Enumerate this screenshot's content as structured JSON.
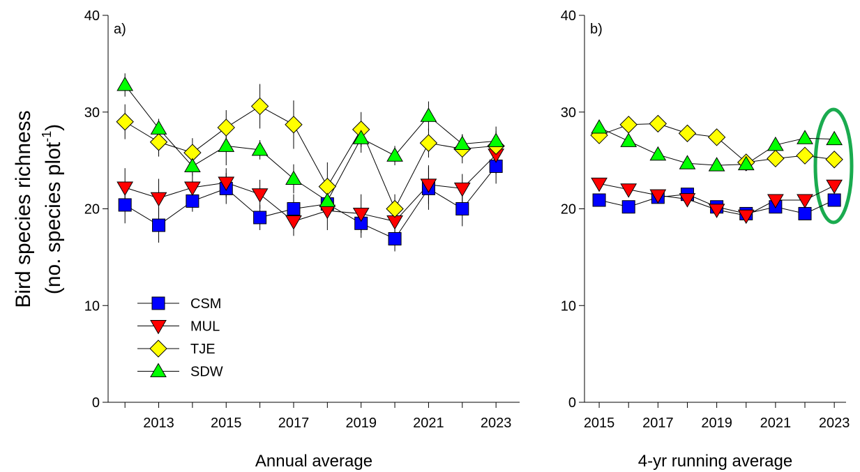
{
  "chart_data": [
    {
      "type": "line",
      "panel_label": "a)",
      "xlabel": "Annual average",
      "ylabel": "Bird species richness",
      "ylabel_unit": "(no. species plot",
      "ylabel_sup": "-1",
      "ylabel_end": ")",
      "x": [
        2012,
        2013,
        2014,
        2015,
        2016,
        2017,
        2018,
        2019,
        2020,
        2021,
        2022,
        2023
      ],
      "xlim": [
        2011.5,
        2023.7
      ],
      "xticks": [
        2013,
        2015,
        2017,
        2019,
        2021,
        2023
      ],
      "ylim": [
        0,
        40
      ],
      "yticks": [
        0,
        10,
        20,
        30,
        40
      ],
      "legend": "lower left",
      "series": [
        {
          "name": "CSM",
          "color": "#0000ff",
          "marker": "square",
          "values": [
            20.4,
            18.3,
            20.8,
            22.1,
            19.1,
            20.0,
            20.5,
            18.5,
            16.9,
            22.1,
            20.0,
            24.4
          ],
          "errors": [
            1.9,
            1.8,
            1.1,
            1.6,
            1.3,
            1.5,
            1.5,
            1.5,
            1.3,
            2.2,
            1.8,
            1.8
          ]
        },
        {
          "name": "MUL",
          "color": "#ff0000",
          "marker": "triangle-down",
          "values": [
            22.2,
            21.1,
            22.2,
            22.7,
            21.5,
            18.7,
            19.8,
            19.5,
            18.7,
            22.5,
            22.1,
            25.6
          ],
          "errors": [
            2.0,
            2.0,
            1.5,
            1.5,
            1.5,
            1.5,
            2.0,
            2.0,
            1.5,
            2.0,
            1.5,
            2.0
          ]
        },
        {
          "name": "TJE",
          "color": "#ffff00",
          "marker": "diamond",
          "values": [
            29.0,
            26.9,
            25.8,
            28.4,
            30.6,
            28.7,
            22.3,
            28.2,
            20.0,
            26.8,
            26.2,
            26.5
          ],
          "errors": [
            1.8,
            1.5,
            1.5,
            1.8,
            2.3,
            2.5,
            2.5,
            1.8,
            1.5,
            1.5,
            1.5,
            1.5
          ]
        },
        {
          "name": "SDW",
          "color": "#00ff00",
          "marker": "triangle-up",
          "values": [
            32.8,
            28.3,
            24.4,
            26.5,
            26.1,
            23.1,
            20.8,
            27.3,
            25.5,
            29.6,
            26.7,
            27.0
          ],
          "errors": [
            1.2,
            1.0,
            1.0,
            2.0,
            1.0,
            1.5,
            1.5,
            1.5,
            1.0,
            1.5,
            1.0,
            1.5
          ]
        }
      ]
    },
    {
      "type": "line",
      "panel_label": "b)",
      "xlabel": "4-yr running average",
      "x": [
        2015,
        2016,
        2017,
        2018,
        2019,
        2020,
        2021,
        2022,
        2023
      ],
      "xlim": [
        2014.5,
        2023.4
      ],
      "xticks": [
        2015,
        2017,
        2019,
        2021,
        2023
      ],
      "ylim": [
        0,
        40
      ],
      "yticks": [
        0,
        10,
        20,
        30,
        40
      ],
      "series": [
        {
          "color": "#0000ff",
          "marker": "square",
          "values": [
            20.9,
            20.2,
            21.2,
            21.5,
            20.2,
            19.5,
            20.2,
            19.5,
            20.9
          ]
        },
        {
          "color": "#ff0000",
          "marker": "triangle-down",
          "values": [
            22.6,
            22.0,
            21.4,
            21.0,
            19.9,
            19.3,
            20.9,
            20.9,
            22.4
          ]
        },
        {
          "color": "#ffff00",
          "marker": "diamond",
          "values": [
            27.6,
            28.7,
            28.8,
            27.8,
            27.4,
            24.8,
            25.2,
            25.5,
            25.1
          ]
        },
        {
          "color": "#00ff00",
          "marker": "triangle-up",
          "values": [
            28.4,
            27.0,
            25.6,
            24.7,
            24.5,
            24.6,
            26.6,
            27.3,
            27.2
          ]
        }
      ]
    }
  ]
}
